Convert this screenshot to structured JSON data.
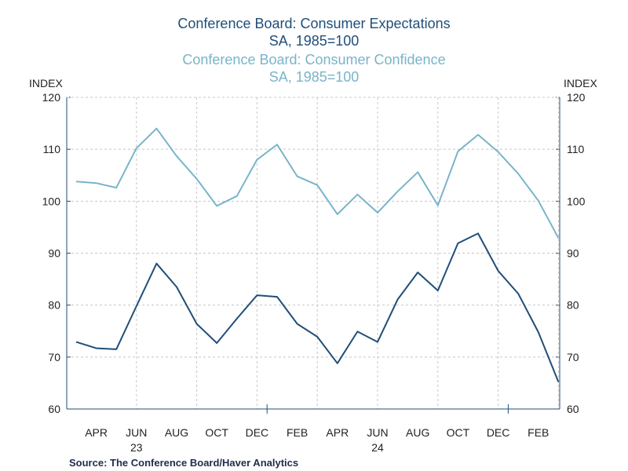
{
  "titles": {
    "line1": "Conference Board: Consumer Expectations",
    "line2": "SA, 1985=100",
    "line3": "Conference Board: Consumer Confidence",
    "line4": "SA, 1985=100"
  },
  "left_axis_unit": "INDEX",
  "right_axis_unit": "INDEX",
  "source": "Source:  The Conference Board/Haver Analytics",
  "chart_data": {
    "type": "line",
    "x_labels": [
      "APR",
      "JUN",
      "AUG",
      "OCT",
      "DEC",
      "FEB",
      "APR",
      "JUN",
      "AUG",
      "OCT",
      "DEC",
      "FEB"
    ],
    "year_labels": [
      {
        "after_month": "JUN",
        "index": 1,
        "text": "23"
      },
      {
        "index": 7,
        "text": "24"
      }
    ],
    "x": [
      "2023-03",
      "2023-04",
      "2023-05",
      "2023-06",
      "2023-07",
      "2023-08",
      "2023-09",
      "2023-10",
      "2023-11",
      "2023-12",
      "2024-01",
      "2024-02",
      "2024-03",
      "2024-04",
      "2024-05",
      "2024-06",
      "2024-07",
      "2024-08",
      "2024-09",
      "2024-10",
      "2024-11",
      "2024-12",
      "2025-01",
      "2025-02",
      "2025-03"
    ],
    "ylim": [
      60,
      120
    ],
    "yticks": [
      60,
      70,
      80,
      90,
      100,
      110,
      120
    ],
    "grid": true,
    "series": [
      {
        "name": "Conference Board: Consumer Expectations",
        "color": "#1f4e79",
        "values": [
          72.9,
          71.7,
          71.5,
          79.8,
          88.0,
          83.5,
          76.4,
          72.7,
          77.4,
          81.9,
          81.6,
          76.4,
          73.9,
          68.8,
          74.9,
          72.9,
          81.1,
          86.3,
          82.8,
          91.9,
          93.8,
          86.6,
          82.2,
          74.8,
          65.2
        ]
      },
      {
        "name": "Conference Board: Consumer Confidence",
        "color": "#79b4c9",
        "values": [
          103.8,
          103.5,
          102.6,
          110.2,
          114.0,
          108.7,
          104.3,
          99.1,
          101.0,
          108.0,
          110.9,
          104.8,
          103.1,
          97.5,
          101.3,
          97.8,
          101.9,
          105.6,
          99.2,
          109.6,
          112.8,
          109.5,
          105.3,
          100.1,
          92.9
        ]
      }
    ]
  }
}
